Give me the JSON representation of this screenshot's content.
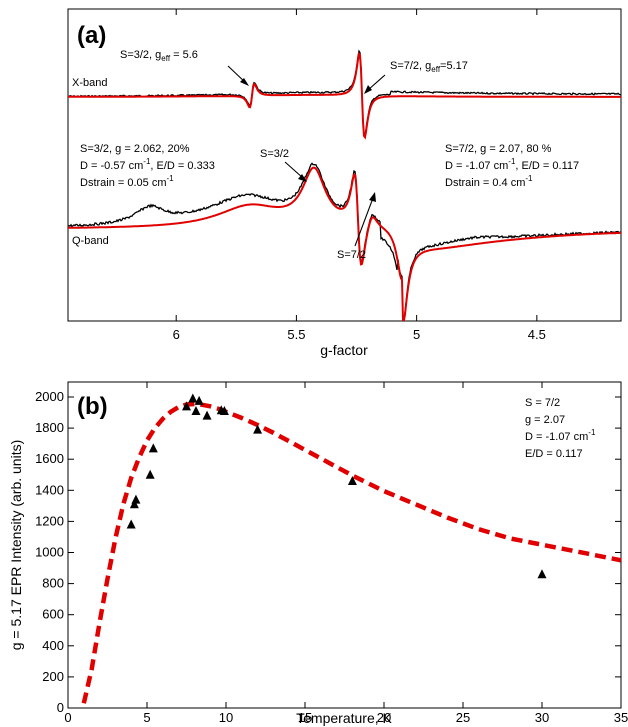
{
  "chart_data": [
    {
      "type": "line",
      "panel_label": "(a)",
      "xlabel": "g-factor",
      "ylabel": "",
      "x_reversed": true,
      "xlim": [
        6.45,
        4.15
      ],
      "x_ticks": [
        {
          "value": 6,
          "label": "6"
        },
        {
          "value": 5.5,
          "label": "5.5"
        },
        {
          "value": 5,
          "label": "5"
        },
        {
          "value": 4.5,
          "label": "4.5"
        }
      ],
      "trace_labels": {
        "xband": "X-band",
        "qband": "Q-band"
      },
      "series": [
        {
          "name": "X-band experiment",
          "color": "#000000"
        },
        {
          "name": "X-band simulation",
          "color": "#e00000"
        },
        {
          "name": "Q-band experiment",
          "color": "#000000"
        },
        {
          "name": "Q-band simulation",
          "color": "#e00000"
        }
      ],
      "annotations": {
        "xband_s32": {
          "base": "S=3/2, g",
          "sub": "eff",
          "rest": " = 5.6"
        },
        "xband_s72": {
          "base": "S=7/2, g",
          "sub": "eff",
          "rest": "=5.17"
        },
        "qband_s32": "S=3/2",
        "qband_s72": "S=7/2",
        "left_params": {
          "line1": "S=3/2, g = 2.062, 20%",
          "line2_base": "D = -0.57 cm",
          "line2_sup": "-1",
          "line2_rest": ", E/D = 0.333",
          "line3_base": "Dstrain = 0.05 cm",
          "line3_sup": "-1"
        },
        "right_params": {
          "line1": "S=7/2, g = 2.07, 80 %",
          "line2_base": "D = -1.07 cm",
          "line2_sup": "-1",
          "line2_rest": ", E/D = 0.117",
          "line3_base": "Dstrain = 0.4 cm",
          "line3_sup": "-1"
        }
      }
    },
    {
      "type": "scatter",
      "panel_label": "(b)",
      "xlabel": "Temperature, K",
      "ylabel": "g = 5.17 EPR Intensity (arb. units)",
      "xlim": [
        0,
        35
      ],
      "ylim": [
        0,
        2100
      ],
      "x_ticks": [
        0,
        5,
        10,
        15,
        20,
        25,
        30,
        35
      ],
      "y_ticks": [
        0,
        200,
        400,
        600,
        800,
        1000,
        1200,
        1400,
        1600,
        1800,
        2000
      ],
      "series": [
        {
          "name": "experiment",
          "marker": "triangle",
          "color": "#000000",
          "x": [
            4.0,
            4.2,
            4.3,
            5.2,
            5.4,
            7.5,
            7.9,
            8.1,
            8.3,
            8.8,
            9.7,
            9.9,
            12.0,
            18.0,
            30.0
          ],
          "y": [
            1180,
            1310,
            1340,
            1500,
            1670,
            1940,
            1990,
            1910,
            1975,
            1880,
            1915,
            1910,
            1790,
            1460,
            860
          ]
        },
        {
          "name": "simulation",
          "style": "dashed",
          "color": "#e00000",
          "x": [
            1,
            1.5,
            2,
            2.5,
            3,
            3.5,
            4,
            4.5,
            5,
            5.5,
            6,
            6.5,
            7,
            7.5,
            8,
            8.5,
            9,
            9.5,
            10,
            11,
            12,
            13,
            14,
            15,
            16,
            17,
            18,
            19,
            20,
            22,
            24,
            26,
            28,
            30,
            32,
            35
          ],
          "y": [
            30,
            250,
            550,
            830,
            1090,
            1310,
            1480,
            1610,
            1720,
            1800,
            1860,
            1905,
            1935,
            1952,
            1955,
            1950,
            1940,
            1925,
            1905,
            1865,
            1820,
            1770,
            1715,
            1660,
            1605,
            1550,
            1495,
            1445,
            1395,
            1310,
            1225,
            1150,
            1090,
            1050,
            1010,
            950
          ]
        }
      ],
      "annotations": {
        "line1": "S = 7/2",
        "line2": "g = 2.07",
        "line3_base": "D = -1.07 cm",
        "line3_sup": "-1",
        "line4": "E/D = 0.117"
      }
    }
  ]
}
